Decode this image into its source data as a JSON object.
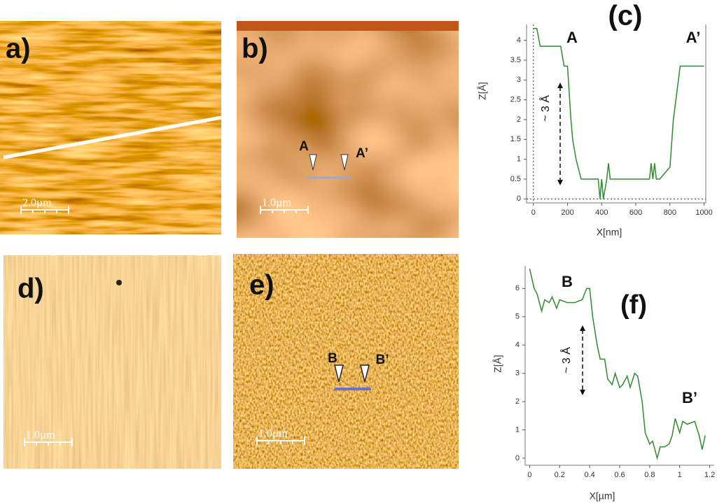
{
  "panels": [
    {
      "label": "a)",
      "scale_bar": "2.0µm"
    },
    {
      "label": "b)",
      "scale_bar": "1.0µm",
      "markers": [
        "A",
        "A’"
      ]
    },
    {
      "label": "d)",
      "scale_bar": "1.0µm"
    },
    {
      "label": "e)",
      "scale_bar": "1.0µm",
      "markers": [
        "B",
        "B’"
      ]
    }
  ],
  "chart_data": [
    {
      "type": "line",
      "title": "(c)",
      "annotations": [
        "A",
        "A’",
        "~ 3 Å"
      ],
      "xlabel": "X[nm]",
      "ylabel": "Z[Å]",
      "x": [
        0,
        20,
        40,
        160,
        180,
        200,
        220,
        230,
        250,
        280,
        300,
        380,
        390,
        400,
        410,
        430,
        440,
        450,
        460,
        680,
        690,
        700,
        710,
        720,
        730,
        740,
        800,
        820,
        860,
        880,
        1000
      ],
      "series": [
        {
          "color": "#2e8b2e",
          "values": [
            4.3,
            4.3,
            3.85,
            3.85,
            3.35,
            3.35,
            2.0,
            1.5,
            1.0,
            0.5,
            0.5,
            0.5,
            0,
            0.5,
            0,
            0.5,
            0.9,
            0.5,
            0.5,
            0.5,
            0.9,
            0.5,
            0.9,
            0.5,
            0.5,
            0.5,
            0.8,
            2.0,
            3.35,
            3.35,
            3.35
          ]
        }
      ],
      "xlim": [
        -40,
        1010
      ],
      "ylim": [
        -0.1,
        4.4
      ],
      "xticks": [
        0,
        200,
        400,
        600,
        800,
        1000
      ],
      "yticks": [
        0,
        0.5,
        1,
        1.5,
        2,
        2.5,
        3,
        3.5,
        4
      ]
    },
    {
      "type": "line",
      "title": "(f)",
      "annotations": [
        "B",
        "B’",
        "~ 3 Å"
      ],
      "xlabel": "X[µm]",
      "ylabel": "Z[Å]",
      "x": [
        0,
        0.03,
        0.05,
        0.08,
        0.1,
        0.13,
        0.15,
        0.18,
        0.2,
        0.25,
        0.3,
        0.35,
        0.38,
        0.4,
        0.42,
        0.45,
        0.47,
        0.5,
        0.52,
        0.55,
        0.57,
        0.6,
        0.62,
        0.65,
        0.67,
        0.7,
        0.72,
        0.75,
        0.77,
        0.8,
        0.82,
        0.85,
        0.87,
        0.9,
        0.93,
        0.95,
        0.97,
        1.0,
        1.02,
        1.05,
        1.1,
        1.13,
        1.15,
        1.17
      ],
      "series": [
        {
          "color": "#2e8b2e",
          "values": [
            6.7,
            6.0,
            5.8,
            5.2,
            5.6,
            5.5,
            5.7,
            5.3,
            5.6,
            5.5,
            5.5,
            5.6,
            6.0,
            6.0,
            5.0,
            4.0,
            3.5,
            3.5,
            2.8,
            2.6,
            3.0,
            2.5,
            2.6,
            2.9,
            2.5,
            3.0,
            2.9,
            2.0,
            0.9,
            0.5,
            0.6,
            0.0,
            0.4,
            0.4,
            0.5,
            0.8,
            1.4,
            0.9,
            1.3,
            1.2,
            1.3,
            0.8,
            0.3,
            0.8
          ]
        }
      ],
      "xlim": [
        -0.03,
        1.23
      ],
      "ylim": [
        -0.25,
        6.8
      ],
      "xticks": [
        0,
        0.2,
        0.4,
        0.6,
        0.8,
        1,
        1.2
      ],
      "yticks": [
        0,
        1,
        2,
        3,
        4,
        5,
        6
      ]
    }
  ]
}
